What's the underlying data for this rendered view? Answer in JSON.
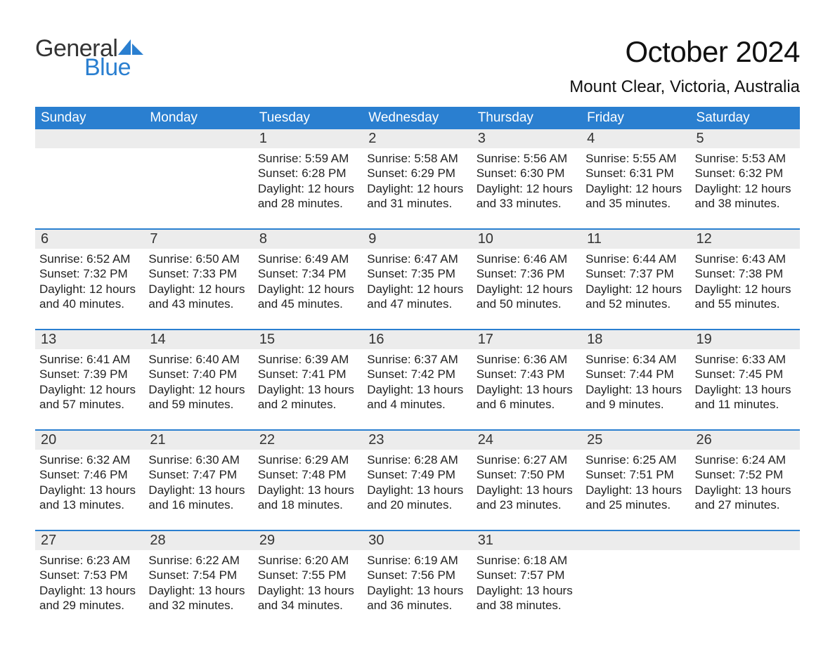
{
  "logo": {
    "text1": "General",
    "text2": "Blue",
    "sail_color": "#2a7fd0"
  },
  "title": "October 2024",
  "location": "Mount Clear, Victoria, Australia",
  "colors": {
    "header_bg": "#2a7fd0",
    "header_text": "#ffffff",
    "daynum_bg": "#ececec",
    "week_border": "#2a7fd0",
    "body_text": "#222222",
    "page_bg": "#ffffff"
  },
  "fonts": {
    "family": "Arial",
    "title_size": 42,
    "location_size": 24,
    "dow_size": 19,
    "daynum_size": 20,
    "body_size": 17
  },
  "days_of_week": [
    "Sunday",
    "Monday",
    "Tuesday",
    "Wednesday",
    "Thursday",
    "Friday",
    "Saturday"
  ],
  "weeks": [
    [
      {
        "num": "",
        "lines": []
      },
      {
        "num": "",
        "lines": []
      },
      {
        "num": "1",
        "lines": [
          "Sunrise: 5:59 AM",
          "Sunset: 6:28 PM",
          "Daylight: 12 hours",
          "and 28 minutes."
        ]
      },
      {
        "num": "2",
        "lines": [
          "Sunrise: 5:58 AM",
          "Sunset: 6:29 PM",
          "Daylight: 12 hours",
          "and 31 minutes."
        ]
      },
      {
        "num": "3",
        "lines": [
          "Sunrise: 5:56 AM",
          "Sunset: 6:30 PM",
          "Daylight: 12 hours",
          "and 33 minutes."
        ]
      },
      {
        "num": "4",
        "lines": [
          "Sunrise: 5:55 AM",
          "Sunset: 6:31 PM",
          "Daylight: 12 hours",
          "and 35 minutes."
        ]
      },
      {
        "num": "5",
        "lines": [
          "Sunrise: 5:53 AM",
          "Sunset: 6:32 PM",
          "Daylight: 12 hours",
          "and 38 minutes."
        ]
      }
    ],
    [
      {
        "num": "6",
        "lines": [
          "Sunrise: 6:52 AM",
          "Sunset: 7:32 PM",
          "Daylight: 12 hours",
          "and 40 minutes."
        ]
      },
      {
        "num": "7",
        "lines": [
          "Sunrise: 6:50 AM",
          "Sunset: 7:33 PM",
          "Daylight: 12 hours",
          "and 43 minutes."
        ]
      },
      {
        "num": "8",
        "lines": [
          "Sunrise: 6:49 AM",
          "Sunset: 7:34 PM",
          "Daylight: 12 hours",
          "and 45 minutes."
        ]
      },
      {
        "num": "9",
        "lines": [
          "Sunrise: 6:47 AM",
          "Sunset: 7:35 PM",
          "Daylight: 12 hours",
          "and 47 minutes."
        ]
      },
      {
        "num": "10",
        "lines": [
          "Sunrise: 6:46 AM",
          "Sunset: 7:36 PM",
          "Daylight: 12 hours",
          "and 50 minutes."
        ]
      },
      {
        "num": "11",
        "lines": [
          "Sunrise: 6:44 AM",
          "Sunset: 7:37 PM",
          "Daylight: 12 hours",
          "and 52 minutes."
        ]
      },
      {
        "num": "12",
        "lines": [
          "Sunrise: 6:43 AM",
          "Sunset: 7:38 PM",
          "Daylight: 12 hours",
          "and 55 minutes."
        ]
      }
    ],
    [
      {
        "num": "13",
        "lines": [
          "Sunrise: 6:41 AM",
          "Sunset: 7:39 PM",
          "Daylight: 12 hours",
          "and 57 minutes."
        ]
      },
      {
        "num": "14",
        "lines": [
          "Sunrise: 6:40 AM",
          "Sunset: 7:40 PM",
          "Daylight: 12 hours",
          "and 59 minutes."
        ]
      },
      {
        "num": "15",
        "lines": [
          "Sunrise: 6:39 AM",
          "Sunset: 7:41 PM",
          "Daylight: 13 hours",
          "and 2 minutes."
        ]
      },
      {
        "num": "16",
        "lines": [
          "Sunrise: 6:37 AM",
          "Sunset: 7:42 PM",
          "Daylight: 13 hours",
          "and 4 minutes."
        ]
      },
      {
        "num": "17",
        "lines": [
          "Sunrise: 6:36 AM",
          "Sunset: 7:43 PM",
          "Daylight: 13 hours",
          "and 6 minutes."
        ]
      },
      {
        "num": "18",
        "lines": [
          "Sunrise: 6:34 AM",
          "Sunset: 7:44 PM",
          "Daylight: 13 hours",
          "and 9 minutes."
        ]
      },
      {
        "num": "19",
        "lines": [
          "Sunrise: 6:33 AM",
          "Sunset: 7:45 PM",
          "Daylight: 13 hours",
          "and 11 minutes."
        ]
      }
    ],
    [
      {
        "num": "20",
        "lines": [
          "Sunrise: 6:32 AM",
          "Sunset: 7:46 PM",
          "Daylight: 13 hours",
          "and 13 minutes."
        ]
      },
      {
        "num": "21",
        "lines": [
          "Sunrise: 6:30 AM",
          "Sunset: 7:47 PM",
          "Daylight: 13 hours",
          "and 16 minutes."
        ]
      },
      {
        "num": "22",
        "lines": [
          "Sunrise: 6:29 AM",
          "Sunset: 7:48 PM",
          "Daylight: 13 hours",
          "and 18 minutes."
        ]
      },
      {
        "num": "23",
        "lines": [
          "Sunrise: 6:28 AM",
          "Sunset: 7:49 PM",
          "Daylight: 13 hours",
          "and 20 minutes."
        ]
      },
      {
        "num": "24",
        "lines": [
          "Sunrise: 6:27 AM",
          "Sunset: 7:50 PM",
          "Daylight: 13 hours",
          "and 23 minutes."
        ]
      },
      {
        "num": "25",
        "lines": [
          "Sunrise: 6:25 AM",
          "Sunset: 7:51 PM",
          "Daylight: 13 hours",
          "and 25 minutes."
        ]
      },
      {
        "num": "26",
        "lines": [
          "Sunrise: 6:24 AM",
          "Sunset: 7:52 PM",
          "Daylight: 13 hours",
          "and 27 minutes."
        ]
      }
    ],
    [
      {
        "num": "27",
        "lines": [
          "Sunrise: 6:23 AM",
          "Sunset: 7:53 PM",
          "Daylight: 13 hours",
          "and 29 minutes."
        ]
      },
      {
        "num": "28",
        "lines": [
          "Sunrise: 6:22 AM",
          "Sunset: 7:54 PM",
          "Daylight: 13 hours",
          "and 32 minutes."
        ]
      },
      {
        "num": "29",
        "lines": [
          "Sunrise: 6:20 AM",
          "Sunset: 7:55 PM",
          "Daylight: 13 hours",
          "and 34 minutes."
        ]
      },
      {
        "num": "30",
        "lines": [
          "Sunrise: 6:19 AM",
          "Sunset: 7:56 PM",
          "Daylight: 13 hours",
          "and 36 minutes."
        ]
      },
      {
        "num": "31",
        "lines": [
          "Sunrise: 6:18 AM",
          "Sunset: 7:57 PM",
          "Daylight: 13 hours",
          "and 38 minutes."
        ]
      },
      {
        "num": "",
        "lines": []
      },
      {
        "num": "",
        "lines": []
      }
    ]
  ]
}
